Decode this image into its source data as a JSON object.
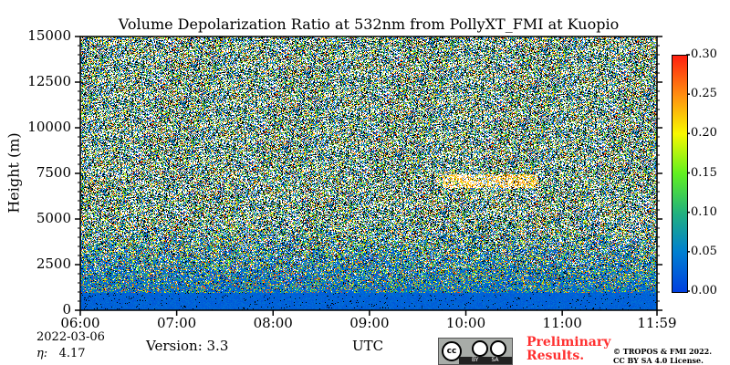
{
  "chart_data": {
    "type": "heatmap",
    "title": "Volume Depolarization Ratio at 532nm from PollyXT_FMI at Kuopio",
    "xlabel": "UTC",
    "ylabel": "Height (m)",
    "xticks": [
      "06:00",
      "07:00",
      "08:00",
      "09:00",
      "10:00",
      "11:00",
      "11:59"
    ],
    "xlim_hours": [
      6.0,
      11.983
    ],
    "yticks": [
      0,
      2500,
      5000,
      7500,
      10000,
      12500,
      15000
    ],
    "ylim": [
      0,
      15000
    ],
    "colorbar": {
      "min": 0.0,
      "max": 0.3,
      "ticks": [
        "0.00",
        "0.05",
        "0.10",
        "0.15",
        "0.20",
        "0.25",
        "0.30"
      ],
      "colors": [
        "#0040e0",
        "#0080d0",
        "#20b080",
        "#60f020",
        "#f8f800",
        "#ff9010",
        "#ff2010"
      ]
    },
    "features": [
      {
        "label": "near-surface layer",
        "height_range_m": [
          0,
          1000
        ],
        "value": 0.02
      },
      {
        "label": "elevated layer",
        "time_range": [
          "09:50",
          "10:40"
        ],
        "height_m": 7000,
        "value": 0.22
      }
    ]
  },
  "footer": {
    "date": "2022-03-06",
    "eta_label": "η:",
    "eta_value": "4.17",
    "version": "Version: 3.3",
    "prelim1": "Preliminary",
    "prelim2": "Results.",
    "copy1": "© TROPOS & FMI 2022.",
    "copy2": "CC BY SA 4.0 License.",
    "cc_by": "BY",
    "cc_sa": "SA"
  }
}
